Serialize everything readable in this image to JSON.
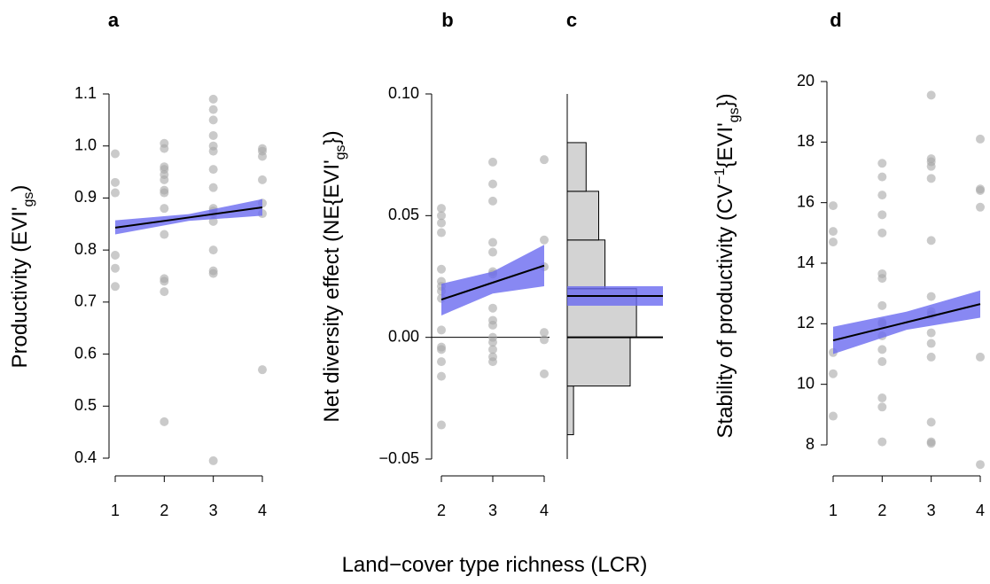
{
  "shared_xlabel": "Land−cover type richness (LCR)",
  "chart_data": [
    {
      "type": "scatter",
      "panel": "a",
      "ylabel": [
        {
          "text": "Productivity (EVI'"
        },
        {
          "text": "gs",
          "shift": "sub"
        },
        {
          "text": ")"
        }
      ],
      "xlim": [
        1,
        4
      ],
      "xticks": [
        1,
        2,
        3,
        4
      ],
      "ylim": [
        0.4,
        1.1
      ],
      "yticks": [
        0.4,
        0.5,
        0.6,
        0.7,
        0.8,
        0.9,
        {
          "value": 1.0,
          "label": "1.0"
        },
        1.1
      ],
      "point_color": "#a6a6a6",
      "x": [
        1,
        1,
        1,
        1,
        1,
        1,
        2,
        2,
        2,
        2,
        2,
        2,
        2,
        2,
        2,
        2,
        2,
        2,
        2,
        2,
        3,
        3,
        3,
        3,
        3,
        3,
        3,
        3,
        3,
        3,
        3,
        3,
        3,
        3,
        3,
        3,
        4,
        4,
        4,
        4,
        4,
        4,
        4
      ],
      "y": [
        0.985,
        0.93,
        0.91,
        0.79,
        0.765,
        0.73,
        1.005,
        0.995,
        0.96,
        0.955,
        0.945,
        0.935,
        0.915,
        0.91,
        0.88,
        0.83,
        0.745,
        0.74,
        0.72,
        0.47,
        1.09,
        1.07,
        1.05,
        1.02,
        1.0,
        0.99,
        0.955,
        0.92,
        0.88,
        0.875,
        0.87,
        0.855,
        0.8,
        0.76,
        0.755,
        0.395,
        0.995,
        0.99,
        0.98,
        0.935,
        0.89,
        0.87,
        0.57
      ],
      "fit": {
        "color": "#6a6af0",
        "x": [
          1,
          2.5,
          4
        ],
        "y": [
          0.843,
          0.8625,
          0.882
        ],
        "lower": [
          0.83,
          0.856,
          0.866
        ],
        "upper": [
          0.857,
          0.869,
          0.898
        ]
      }
    },
    {
      "type": "scatter",
      "panel": "b",
      "ylabel": [
        {
          "text": "Net diversity effect (NE{EVI'"
        },
        {
          "text": "gs",
          "shift": "sub"
        },
        {
          "text": "})"
        }
      ],
      "xlim": [
        2,
        4
      ],
      "xticks": [
        2,
        3,
        4
      ],
      "ylim": [
        -0.05,
        0.1
      ],
      "yticks": [
        {
          "value": -0.05,
          "label": "−0.05"
        },
        {
          "value": 0,
          "label": "0.00"
        },
        0.05,
        {
          "value": 0.1,
          "label": "0.10"
        }
      ],
      "hline": 0,
      "point_color": "#a6a6a6",
      "x": [
        2,
        2,
        2,
        2,
        2,
        2,
        2,
        2,
        2,
        2,
        2,
        2,
        2,
        2,
        2,
        3,
        3,
        3,
        3,
        3,
        3,
        3,
        3,
        3,
        3,
        3,
        3,
        3,
        3,
        3,
        4,
        4,
        4,
        4,
        4,
        4
      ],
      "y": [
        0.053,
        0.05,
        0.047,
        0.043,
        0.028,
        0.023,
        0.021,
        0.019,
        0.016,
        0.003,
        -0.004,
        -0.005,
        -0.01,
        -0.016,
        -0.036,
        0.072,
        0.063,
        0.056,
        0.039,
        0.035,
        0.027,
        0.026,
        0.012,
        0.007,
        0.005,
        0.0,
        -0.002,
        -0.005,
        -0.008,
        -0.01,
        0.073,
        0.04,
        0.029,
        0.002,
        -0.001,
        -0.015
      ],
      "fit": {
        "color": "#6a6af0",
        "x": [
          2,
          3,
          4
        ],
        "y": [
          0.0155,
          0.0225,
          0.0295
        ],
        "lower": [
          0.009,
          0.018,
          0.021
        ],
        "upper": [
          0.022,
          0.027,
          0.038
        ]
      }
    },
    {
      "type": "histogram",
      "panel": "c",
      "ylim": [
        -0.05,
        0.1
      ],
      "bins": [
        -0.04,
        -0.02,
        0,
        0.02,
        0.04,
        0.06,
        0.08
      ],
      "counts": [
        1,
        10,
        11,
        6,
        5,
        3
      ],
      "bar_color": "#d3d3d3",
      "hline": 0,
      "mean": 0.017,
      "mean_ci": [
        0.013,
        0.021
      ],
      "ci_color": "#6a6af0"
    },
    {
      "type": "scatter",
      "panel": "d",
      "ylabel": [
        {
          "text": "Stability of productivity (CV"
        },
        {
          "text": "−1",
          "shift": "super"
        },
        {
          "text": "{EVI'"
        },
        {
          "text": "gs",
          "shift": "sub"
        },
        {
          "text": "})"
        }
      ],
      "xlim": [
        1,
        4
      ],
      "xticks": [
        1,
        2,
        3,
        4
      ],
      "ylim": [
        8,
        20
      ],
      "yticks": [
        8,
        10,
        12,
        14,
        16,
        18,
        20
      ],
      "point_color": "#a6a6a6",
      "x": [
        1,
        1,
        1,
        1,
        1,
        1,
        2,
        2,
        2,
        2,
        2,
        2,
        2,
        2,
        2,
        2,
        2,
        2,
        2,
        2,
        2,
        2,
        3,
        3,
        3,
        3,
        3,
        3,
        3,
        3,
        3,
        3,
        3,
        3,
        3,
        3,
        3,
        4,
        4,
        4,
        4,
        4,
        4
      ],
      "y": [
        15.9,
        15.05,
        14.7,
        11.05,
        10.35,
        8.95,
        17.3,
        16.85,
        16.25,
        15.6,
        15.0,
        13.65,
        13.5,
        12.6,
        12.05,
        12.0,
        11.6,
        11.15,
        10.75,
        9.55,
        9.25,
        8.1,
        19.55,
        17.45,
        17.35,
        17.2,
        16.8,
        14.75,
        12.9,
        12.4,
        12.3,
        11.7,
        11.35,
        10.9,
        8.75,
        8.1,
        8.05,
        18.1,
        16.45,
        16.4,
        15.85,
        10.9,
        7.35
      ],
      "fit": {
        "color": "#6a6af0",
        "x": [
          1,
          2.5,
          4
        ],
        "y": [
          11.45,
          12.05,
          12.65
        ],
        "lower": [
          11.0,
          11.8,
          12.2
        ],
        "upper": [
          11.9,
          12.4,
          13.1
        ]
      }
    }
  ]
}
